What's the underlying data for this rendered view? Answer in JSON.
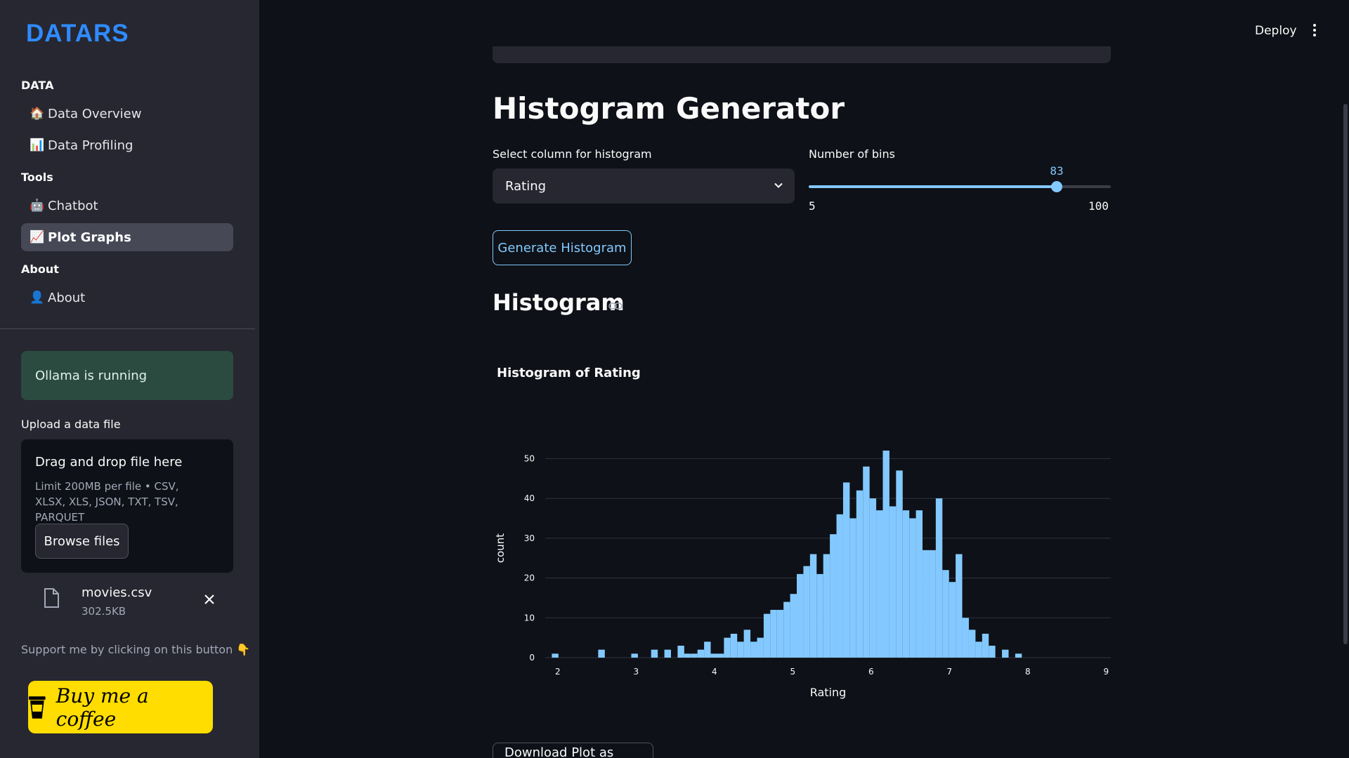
{
  "sidebar": {
    "logo": "DATARS",
    "sections": [
      {
        "label": "DATA",
        "items": [
          {
            "emoji": "🏠",
            "label": "Data Overview",
            "active": false
          },
          {
            "emoji": "📊",
            "label": "Data Profiling",
            "active": false
          }
        ]
      },
      {
        "label": "Tools",
        "items": [
          {
            "emoji": "🤖",
            "label": "Chatbot",
            "active": false
          },
          {
            "emoji": "📈",
            "label": "Plot Graphs",
            "active": true
          }
        ]
      },
      {
        "label": "About",
        "items": [
          {
            "emoji": "👤",
            "label": "About",
            "active": false
          }
        ]
      }
    ],
    "status": "Ollama is running",
    "upload": {
      "label": "Upload a data file",
      "title": "Drag and drop file here",
      "limits": "Limit 200MB per file • CSV, XLSX, XLS, JSON, TXT, TSV, PARQUET",
      "browse_label": "Browse files"
    },
    "file": {
      "name": "movies.csv",
      "size": "302.5KB",
      "icon": "file-icon",
      "close_icon": "close-icon"
    },
    "support_text": "Support me by clicking on this button 👇",
    "coffee_label": "Buy me a coffee"
  },
  "header": {
    "deploy_label": "Deploy",
    "menu_icon": "kebab-menu-icon"
  },
  "main": {
    "title": "Histogram Generator",
    "column_label": "Select column for histogram",
    "column_value": "Rating",
    "bins_label": "Number of bins",
    "bins_value": 83,
    "bins_min": 5,
    "bins_max": 100,
    "generate_label": "Generate Histogram",
    "section_title": "Histogram",
    "download_label": "Download Plot as HTML"
  },
  "colors": {
    "accent": "#83c9ff",
    "bar": "#83c9ff",
    "sidebar": "#262730",
    "background": "#0e1117",
    "success": "#2c4b40",
    "coffee": "#ffdd00"
  },
  "chart_data": {
    "type": "bar",
    "title": "Histogram of Rating",
    "xlabel": "Rating",
    "ylabel": "count",
    "xlim": [
      1.84,
      9.06
    ],
    "ylim": [
      0,
      55
    ],
    "xticks": [
      2,
      3,
      4,
      5,
      6,
      7,
      8,
      9
    ],
    "yticks": [
      0,
      10,
      20,
      30,
      40,
      50
    ],
    "bin_width": 0.0845,
    "bin_start": 1.84,
    "values": [
      0,
      1,
      0,
      0,
      0,
      0,
      0,
      0,
      2,
      0,
      0,
      0,
      0,
      1,
      0,
      0,
      2,
      0,
      2,
      0,
      3,
      1,
      1,
      2,
      4,
      1,
      1,
      5,
      6,
      4,
      7,
      4,
      5,
      11,
      12,
      12,
      14,
      16,
      21,
      23,
      26,
      21,
      26,
      31,
      36,
      44,
      35,
      42,
      48,
      40,
      37,
      52,
      38,
      47,
      37,
      35,
      37,
      27,
      27,
      40,
      22,
      19,
      26,
      10,
      7,
      4,
      6,
      3,
      0,
      2,
      0,
      1,
      0
    ],
    "grid": true
  }
}
